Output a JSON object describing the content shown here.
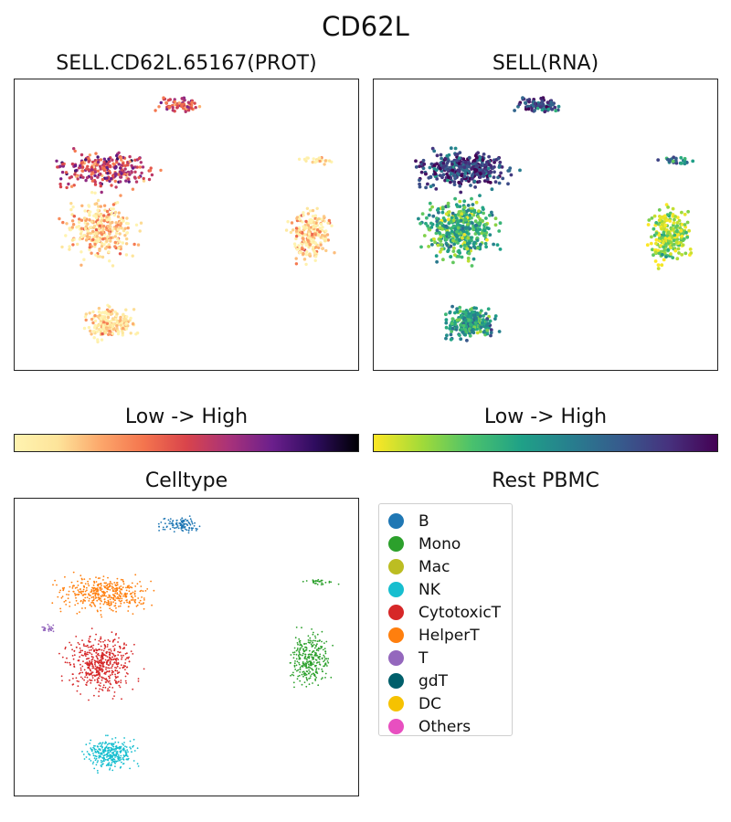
{
  "figure": {
    "title": "CD62L",
    "colorbar_label": "Low  ->  High"
  },
  "chart_data": [
    {
      "type": "scatter",
      "title": "SELL.CD62L.65167(PROT)",
      "colormap": [
        "#fff3b0",
        "#fde49a",
        "#fca76b",
        "#f4754e",
        "#d9444b",
        "#a8327a",
        "#6b1f8c",
        "#2e0c5e",
        "#000004"
      ],
      "ticks": "none",
      "clusters": [
        {
          "name": "B",
          "cx": 0.48,
          "cy": 0.09,
          "rx": 0.09,
          "ry": 0.04,
          "n": 70,
          "level": 0.45
        },
        {
          "name": "HelperT",
          "cx": 0.26,
          "cy": 0.31,
          "rx": 0.21,
          "ry": 0.09,
          "n": 260,
          "level": 0.55
        },
        {
          "name": "CytotoxicT",
          "cx": 0.25,
          "cy": 0.52,
          "rx": 0.15,
          "ry": 0.16,
          "n": 300,
          "level": 0.15
        },
        {
          "name": "Mono-small",
          "cx": 0.88,
          "cy": 0.28,
          "rx": 0.08,
          "ry": 0.02,
          "n": 25,
          "level": 0.05
        },
        {
          "name": "Mono",
          "cx": 0.86,
          "cy": 0.54,
          "rx": 0.09,
          "ry": 0.14,
          "n": 220,
          "level": 0.12
        },
        {
          "name": "NK",
          "cx": 0.28,
          "cy": 0.84,
          "rx": 0.11,
          "ry": 0.08,
          "n": 200,
          "level": 0.1
        }
      ]
    },
    {
      "type": "scatter",
      "title": "SELL(RNA)",
      "colormap": [
        "#fde725",
        "#a0da39",
        "#4ac16d",
        "#1fa187",
        "#277f8e",
        "#365c8d",
        "#46327e",
        "#440154"
      ],
      "ticks": "none",
      "clusters": [
        {
          "name": "B",
          "cx": 0.48,
          "cy": 0.09,
          "rx": 0.09,
          "ry": 0.04,
          "n": 90,
          "level": 0.75
        },
        {
          "name": "HelperT",
          "cx": 0.26,
          "cy": 0.31,
          "rx": 0.21,
          "ry": 0.09,
          "n": 360,
          "level": 0.8
        },
        {
          "name": "CytotoxicT",
          "cx": 0.25,
          "cy": 0.52,
          "rx": 0.15,
          "ry": 0.16,
          "n": 420,
          "level": 0.35
        },
        {
          "name": "Mono-small",
          "cx": 0.88,
          "cy": 0.28,
          "rx": 0.08,
          "ry": 0.02,
          "n": 25,
          "level": 0.6
        },
        {
          "name": "Mono",
          "cx": 0.86,
          "cy": 0.54,
          "rx": 0.09,
          "ry": 0.14,
          "n": 240,
          "level": 0.15
        },
        {
          "name": "NK",
          "cx": 0.28,
          "cy": 0.84,
          "rx": 0.11,
          "ry": 0.08,
          "n": 260,
          "level": 0.45
        }
      ]
    },
    {
      "type": "scatter",
      "title": "Celltype",
      "ticks": "none",
      "clusters": [
        {
          "name": "B",
          "cx": 0.48,
          "cy": 0.09,
          "rx": 0.09,
          "ry": 0.04,
          "n": 110,
          "color": "#1f77b4"
        },
        {
          "name": "HelperT",
          "cx": 0.26,
          "cy": 0.32,
          "rx": 0.21,
          "ry": 0.09,
          "n": 420,
          "color": "#ff7f0e"
        },
        {
          "name": "T",
          "cx": 0.1,
          "cy": 0.44,
          "rx": 0.03,
          "ry": 0.02,
          "n": 25,
          "color": "#9467bd"
        },
        {
          "name": "CytotoxicT",
          "cx": 0.25,
          "cy": 0.56,
          "rx": 0.15,
          "ry": 0.15,
          "n": 520,
          "color": "#d62728"
        },
        {
          "name": "Mono-small",
          "cx": 0.88,
          "cy": 0.28,
          "rx": 0.08,
          "ry": 0.02,
          "n": 30,
          "color": "#2ca02c"
        },
        {
          "name": "Mono",
          "cx": 0.86,
          "cy": 0.54,
          "rx": 0.09,
          "ry": 0.14,
          "n": 300,
          "color": "#2ca02c"
        },
        {
          "name": "NK",
          "cx": 0.28,
          "cy": 0.86,
          "rx": 0.11,
          "ry": 0.08,
          "n": 320,
          "color": "#17becf"
        }
      ]
    }
  ],
  "legend": {
    "title": "Rest PBMC",
    "placement": "right",
    "items": [
      {
        "label": "B",
        "color": "#1f77b4"
      },
      {
        "label": "Mono",
        "color": "#2ca02c"
      },
      {
        "label": "Mac",
        "color": "#bcbd22"
      },
      {
        "label": "NK",
        "color": "#17becf"
      },
      {
        "label": "CytotoxicT",
        "color": "#d62728"
      },
      {
        "label": "HelperT",
        "color": "#ff7f0e"
      },
      {
        "label": "T",
        "color": "#9467bd"
      },
      {
        "label": "gdT",
        "color": "#005f6b"
      },
      {
        "label": "DC",
        "color": "#f6c200"
      },
      {
        "label": "Others",
        "color": "#e84fc0"
      }
    ]
  }
}
